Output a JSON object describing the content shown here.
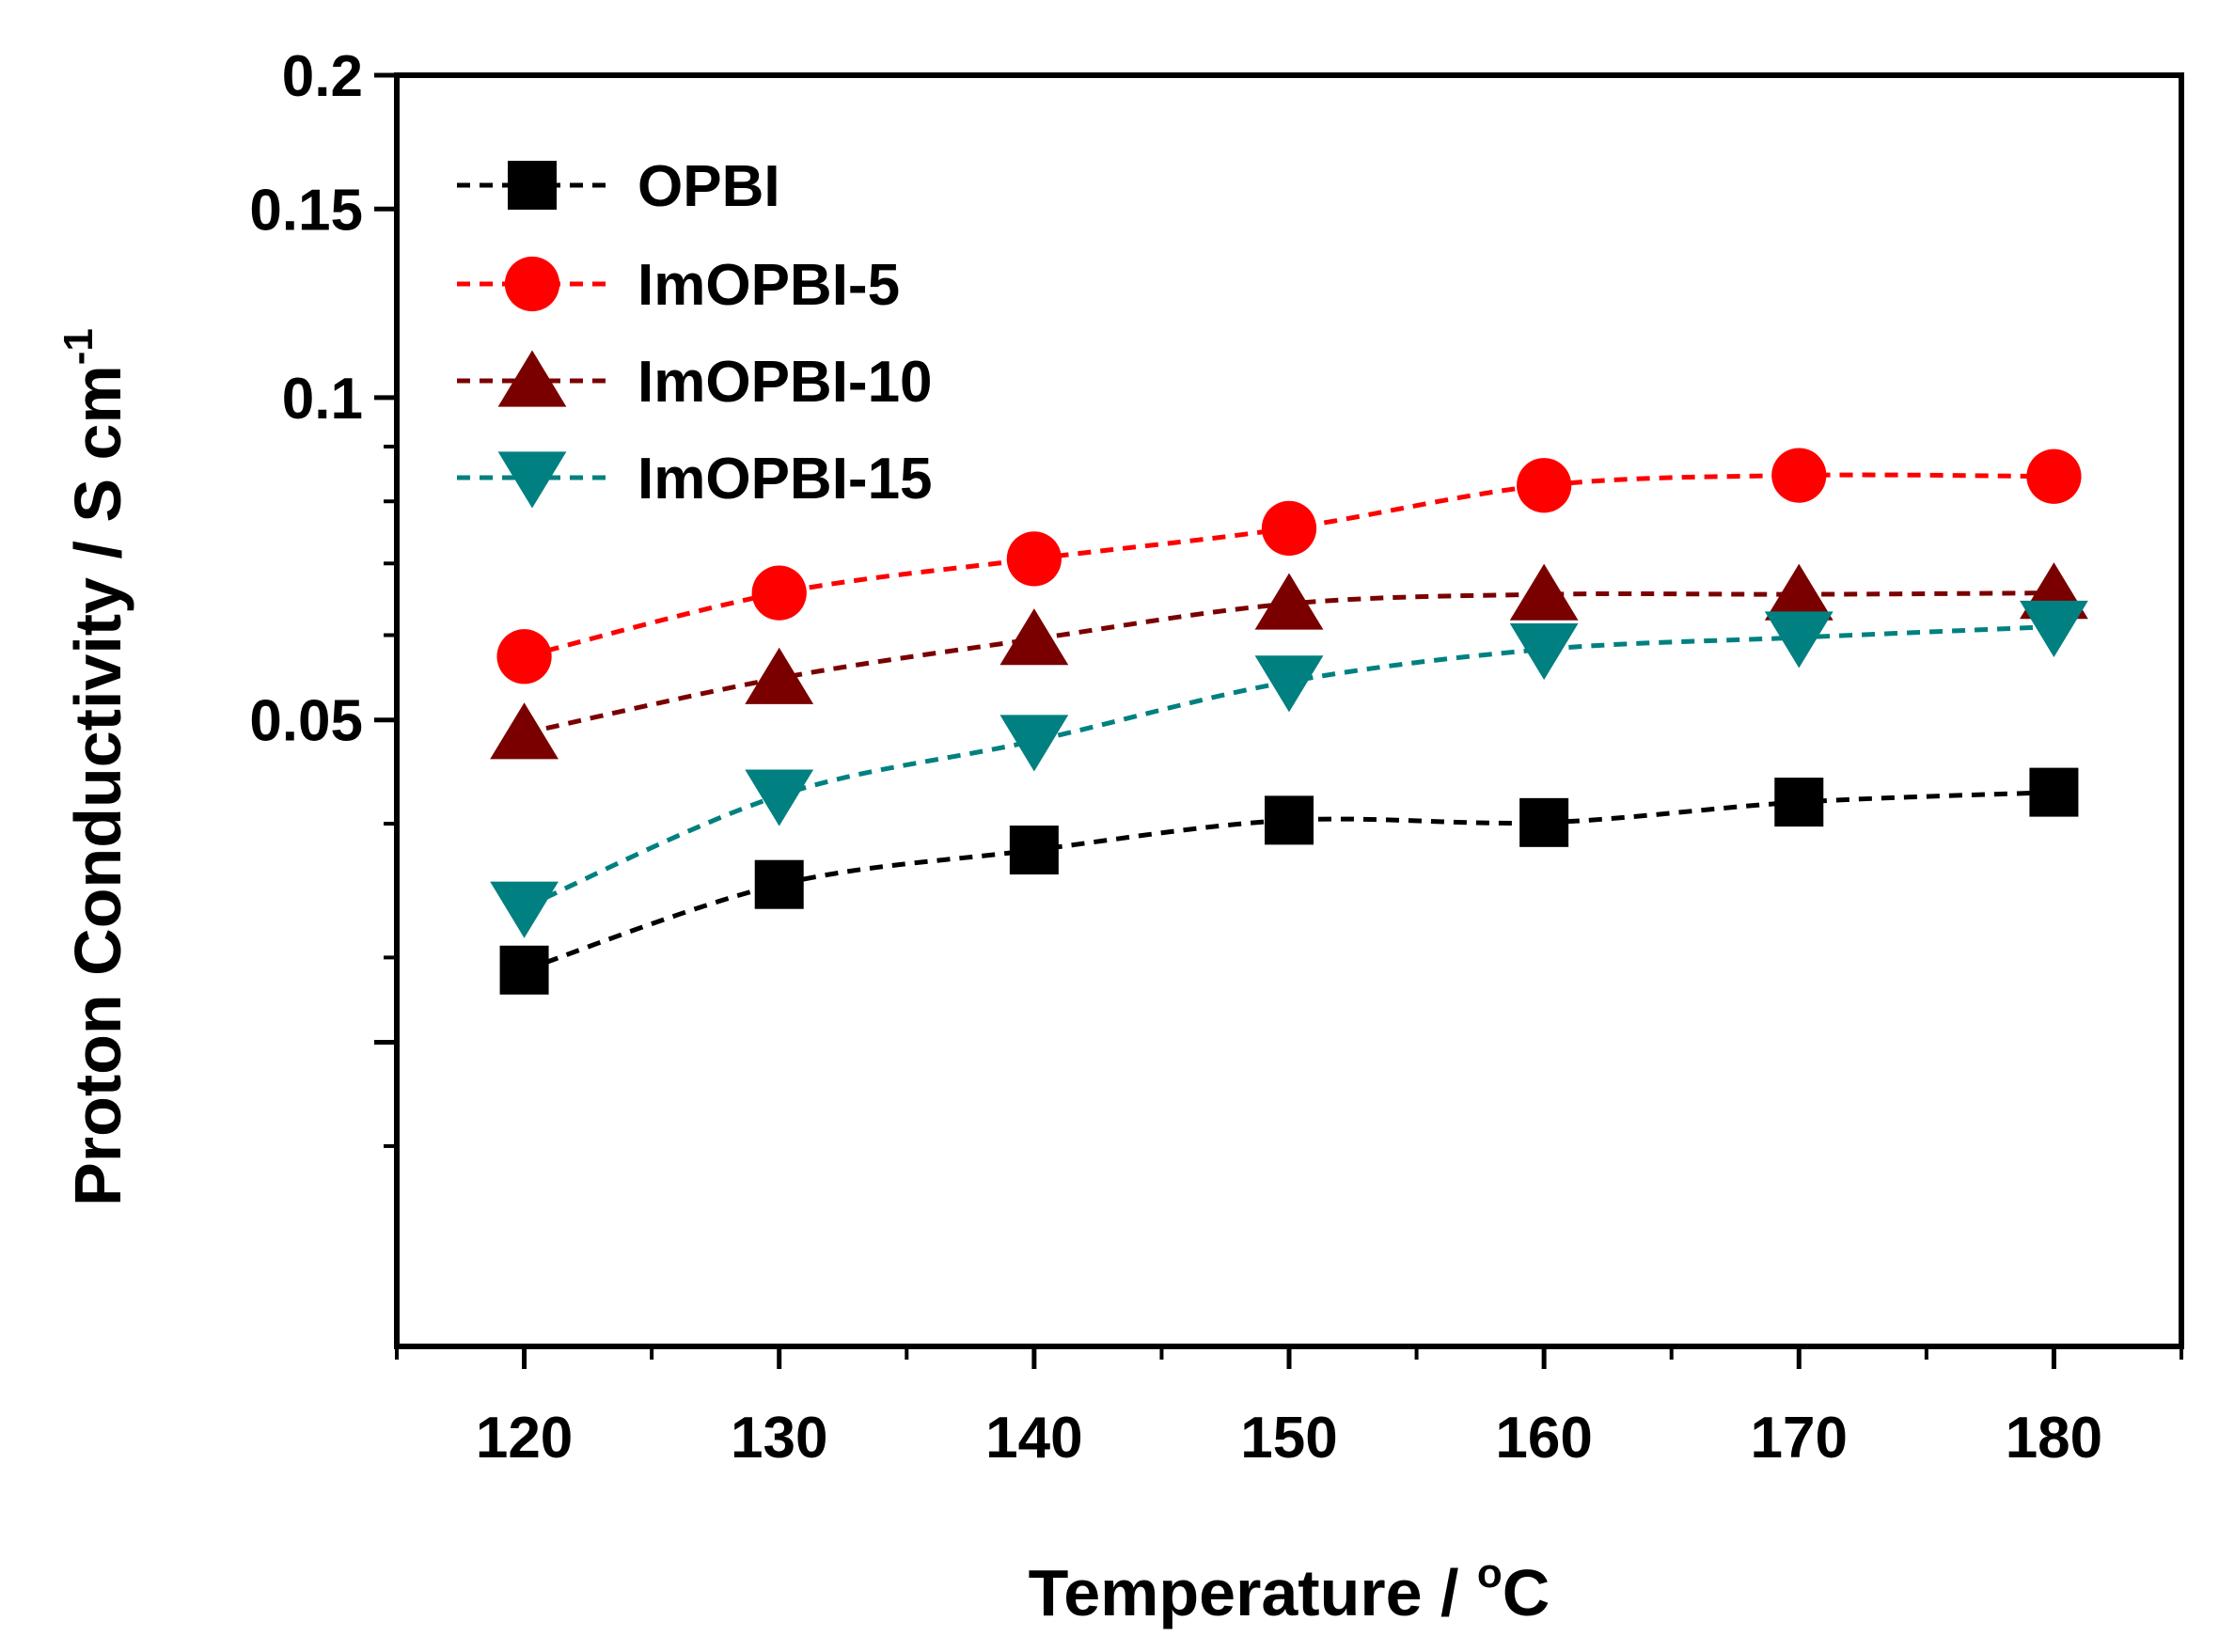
{
  "chart_data": {
    "type": "line",
    "title": "",
    "xlabel": "Temperature / °C",
    "xlabel_parts": {
      "main": "Temperature / ",
      "sup": "o",
      "unit": "C"
    },
    "ylabel": "Proton Conductivity / S cm-1",
    "ylabel_parts": {
      "main": "Proton Conductivity / S cm",
      "sup": "-1"
    },
    "x": [
      120,
      130,
      140,
      150,
      160,
      170,
      180
    ],
    "xlim": [
      115,
      185
    ],
    "xticks": [
      120,
      130,
      140,
      150,
      160,
      170,
      180
    ],
    "xtick_labels": [
      "120",
      "130",
      "140",
      "150",
      "160",
      "170",
      "180"
    ],
    "yscale": "log",
    "ylim": [
      0.013,
      0.2
    ],
    "yticks": [
      0.05,
      0.1,
      0.15,
      0.2
    ],
    "ytick_labels": [
      "0.05",
      "0.1",
      "0.15",
      "0.2"
    ],
    "y_unlabeled_ticks": [
      0.025
    ],
    "legend_position": "top-left",
    "series": [
      {
        "name": "OPBI",
        "color": "#000000",
        "marker": "square",
        "values": [
          0.0292,
          0.0351,
          0.0378,
          0.0403,
          0.0401,
          0.0419,
          0.0428
        ]
      },
      {
        "name": "ImOPBI-5",
        "color": "#ff0000",
        "marker": "circle",
        "values": [
          0.0573,
          0.0657,
          0.0707,
          0.0755,
          0.0828,
          0.0846,
          0.0844
        ]
      },
      {
        "name": "ImOPBI-10",
        "color": "#7a0000",
        "marker": "triangle-up",
        "values": [
          0.0486,
          0.0547,
          0.0595,
          0.0642,
          0.0655,
          0.0655,
          0.0657
        ]
      },
      {
        "name": "ImOPBI-15",
        "color": "#008080",
        "marker": "triangle-down",
        "values": [
          0.0334,
          0.0425,
          0.0478,
          0.0543,
          0.0582,
          0.0597,
          0.0611
        ]
      }
    ]
  }
}
